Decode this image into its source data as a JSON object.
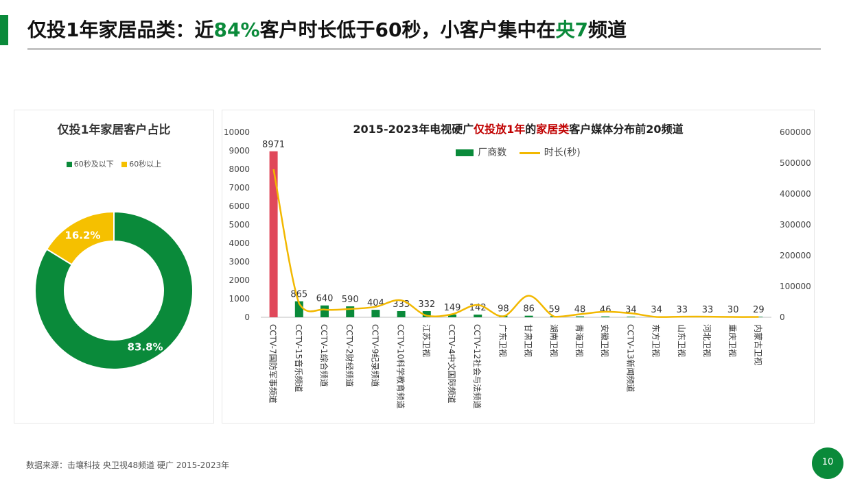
{
  "header": {
    "title_part1": "仅投1年家居品类：近",
    "title_highlight1": "84%",
    "title_part2": "客户时长低于60秒，小客户集中在",
    "title_highlight2": "央7",
    "title_part3": "频道"
  },
  "footer": {
    "source": "数据来源：击壤科技 央卫视48频道 硬广 2015-2023年",
    "page_number": "10"
  },
  "colors": {
    "accent_green": "#0a8a3a",
    "accent_yellow": "#f5c000",
    "highlight_bar": "#e0485a",
    "title_red": "#c00000"
  },
  "chart_data": [
    {
      "type": "pie",
      "title": "仅投1年家居客户占比",
      "legend_position": "top",
      "labels": [
        "60秒及以下",
        "60秒以上"
      ],
      "values": [
        83.8,
        16.2
      ],
      "value_labels": [
        "83.8%",
        "16.2%"
      ]
    },
    {
      "type": "bar",
      "title_part1": "2015-2023年电视硬广",
      "title_red1": "仅投放1年",
      "title_part2": "的",
      "title_red2": "家居类",
      "title_part3": "客户媒体分布前20频道",
      "legend_position": "top",
      "categories": [
        "CCTV-7国防军事频道",
        "CCTV-15音乐频道",
        "CCTV-1综合频道",
        "CCTV-2财经频道",
        "CCTV-9纪录频道",
        "CCTV-10科学教育频道",
        "江苏卫视",
        "CCTV-4中文国际频道",
        "CCTV-12社会与法频道",
        "广东卫视",
        "甘肃卫视",
        "湖南卫视",
        "青海卫视",
        "安徽卫视",
        "CCTV-13新闻频道",
        "东方卫视",
        "山东卫视",
        "河北卫视",
        "重庆卫视",
        "内蒙古卫视"
      ],
      "series": [
        {
          "name": "厂商数",
          "kind": "bar",
          "axis": "left",
          "values": [
            8971,
            865,
            640,
            590,
            404,
            333,
            332,
            149,
            142,
            98,
            86,
            59,
            48,
            46,
            34,
            34,
            33,
            33,
            30,
            29
          ]
        },
        {
          "name": "时长(秒)",
          "kind": "line",
          "axis": "right",
          "values": [
            480000,
            45000,
            25000,
            27000,
            34000,
            55000,
            5000,
            10000,
            40000,
            3000,
            70000,
            2000,
            10000,
            18000,
            13000,
            1000,
            2000,
            2000,
            1000,
            1000
          ]
        }
      ],
      "y_left": {
        "range": [
          0,
          10000
        ],
        "ticks": [
          0,
          1000,
          2000,
          3000,
          4000,
          5000,
          6000,
          7000,
          8000,
          9000,
          10000
        ]
      },
      "y_right": {
        "range": [
          0,
          600000
        ],
        "ticks": [
          0,
          100000,
          200000,
          300000,
          400000,
          500000,
          600000
        ]
      },
      "highlight_index": 0,
      "grid": false
    }
  ]
}
